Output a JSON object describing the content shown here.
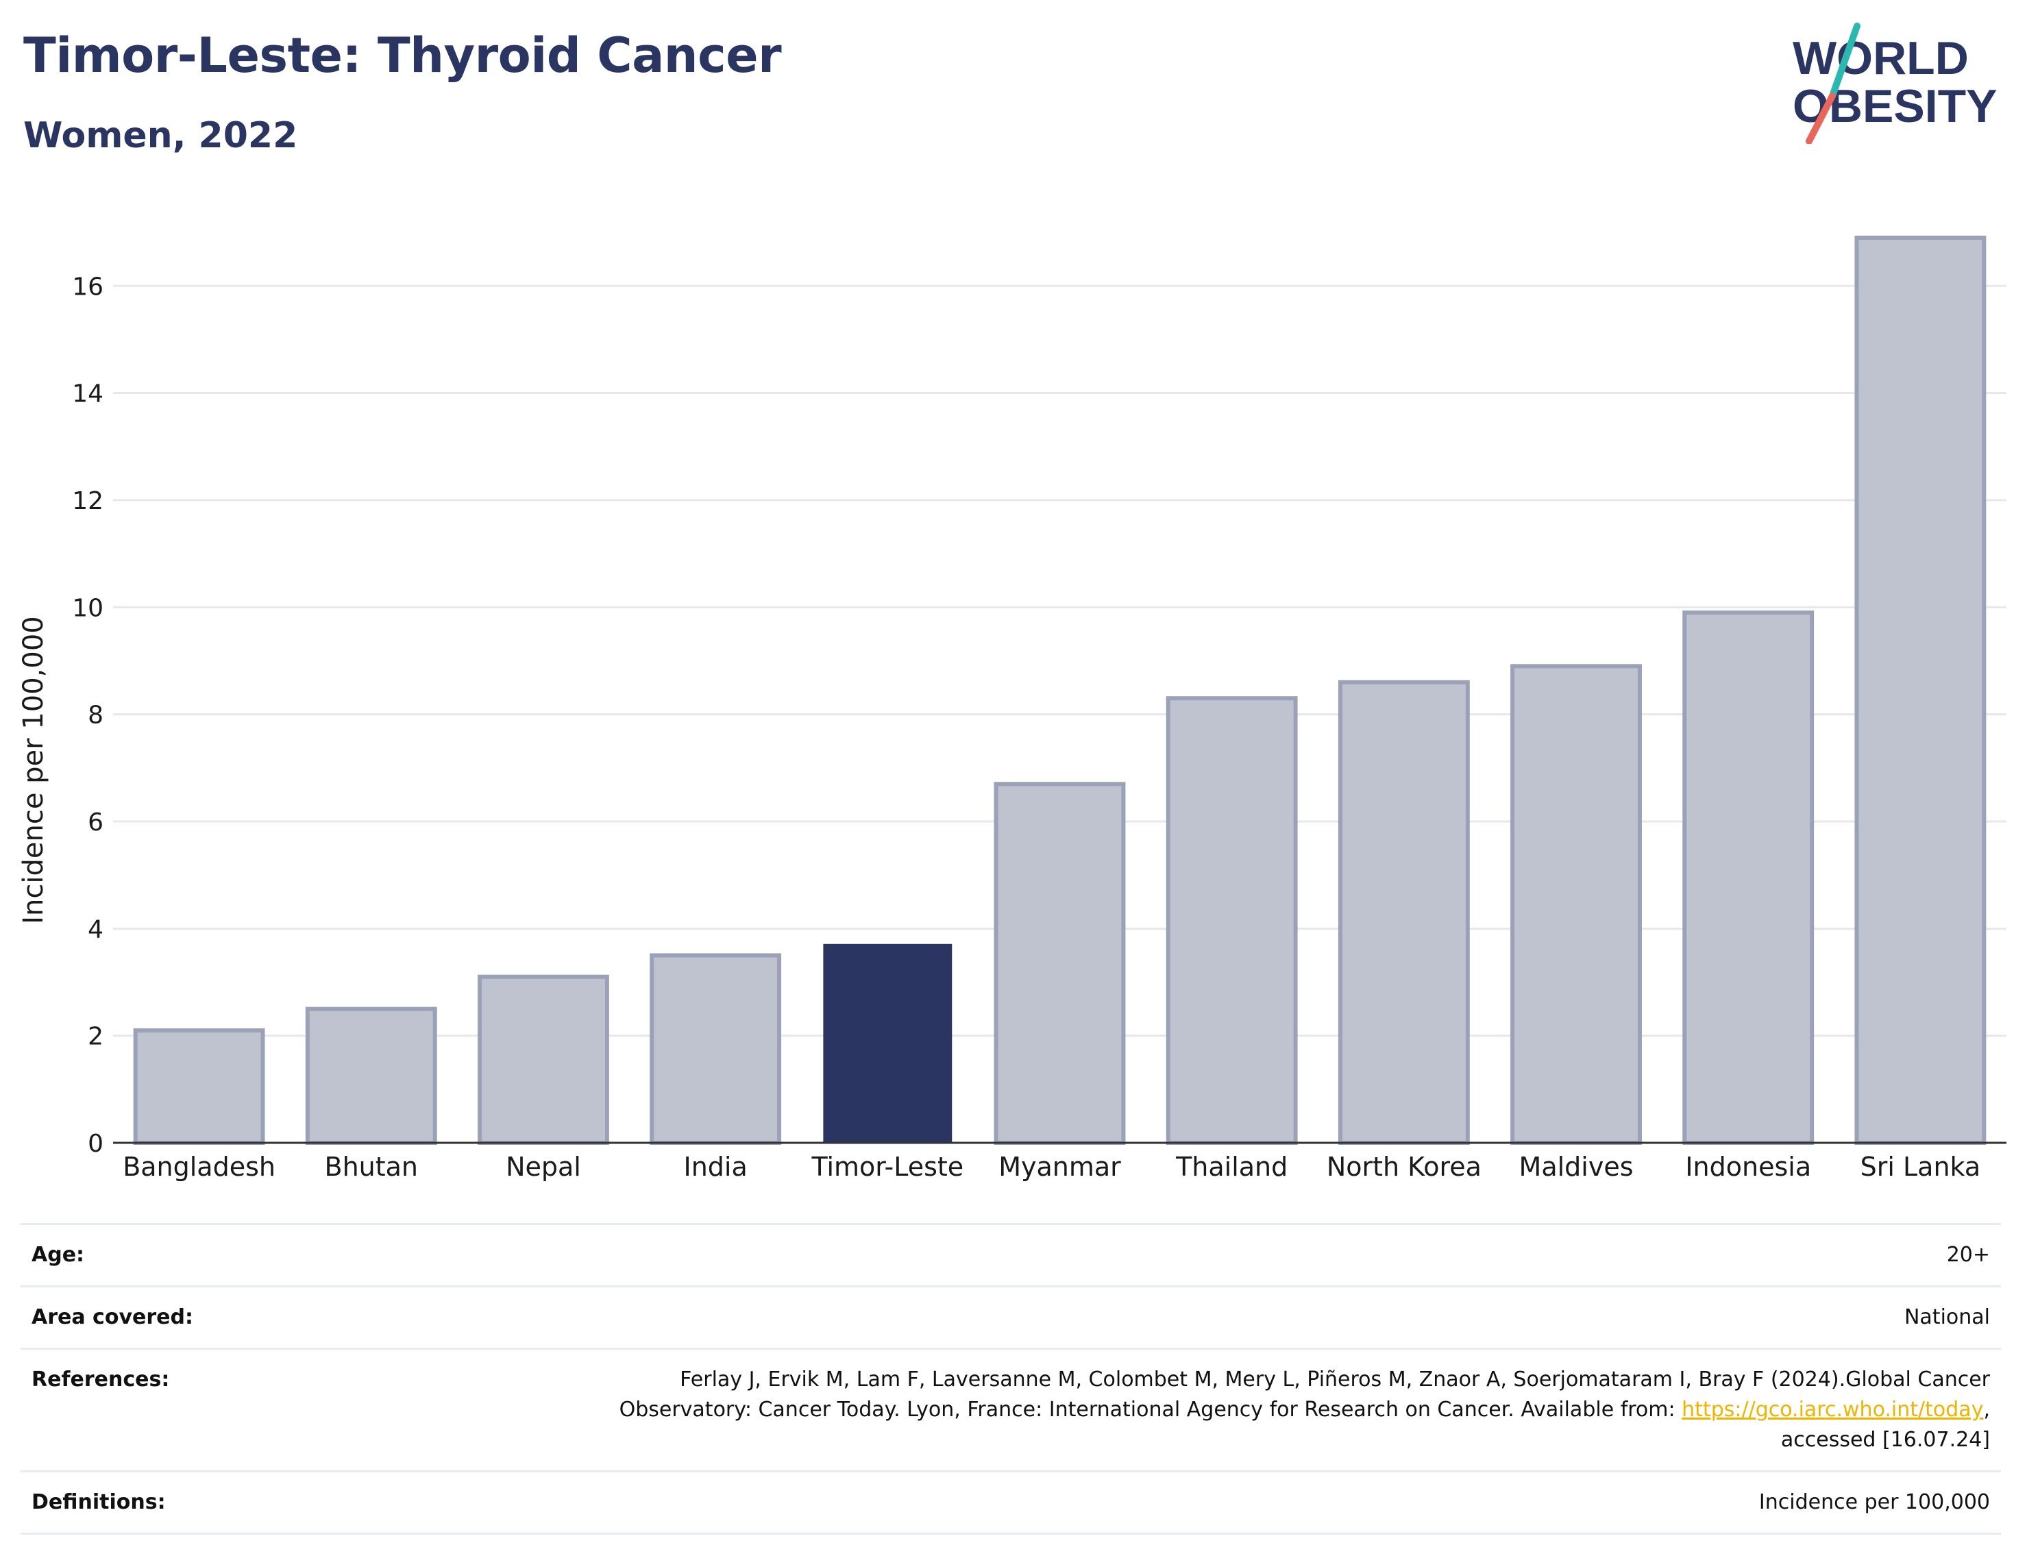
{
  "header": {
    "title": "Timor-Leste: Thyroid Cancer",
    "subtitle": "Women, 2022"
  },
  "logo": {
    "line1": "WORLD",
    "line2": "OBESITY",
    "colors": {
      "text": "#2b3561",
      "slash_top": "#2bb8b0",
      "slash_bottom": "#e8665a"
    }
  },
  "chart_data": {
    "type": "bar",
    "title": "",
    "xlabel": "",
    "ylabel": "Incidence per 100,000",
    "ylim": [
      0,
      17.5
    ],
    "yticks": [
      0,
      2,
      4,
      6,
      8,
      10,
      12,
      14,
      16
    ],
    "grid": true,
    "categories": [
      "Bangladesh",
      "Bhutan",
      "Nepal",
      "India",
      "Timor-Leste",
      "Myanmar",
      "Thailand",
      "North Korea",
      "Maldives",
      "Indonesia",
      "Sri Lanka"
    ],
    "values": [
      2.1,
      2.5,
      3.1,
      3.5,
      3.7,
      6.7,
      8.3,
      8.6,
      8.9,
      9.9,
      16.9
    ],
    "highlight": "Timor-Leste",
    "colors": {
      "default": "#bfc3cf",
      "default_border": "#9ba1b6",
      "highlight": "#2b3561"
    }
  },
  "info": {
    "age_label": "Age:",
    "age_value": "20+",
    "area_label": "Area covered:",
    "area_value": "National",
    "references_label": "References:",
    "references_line1": "Ferlay J, Ervik M, Lam F, Laversanne M, Colombet M, Mery L, Piñeros M, Znaor A, Soerjomataram I, Bray F (2024).Global Cancer",
    "references_line2_before": "Observatory: Cancer Today. Lyon, France: International Agency for Research on Cancer. Available from: ",
    "references_link": "https://gco.iarc.who.int/today",
    "references_line2_after": ",",
    "references_line3": "accessed [16.07.24]",
    "definitions_label": "Definitions:",
    "definitions_value": "Incidence per 100,000"
  }
}
